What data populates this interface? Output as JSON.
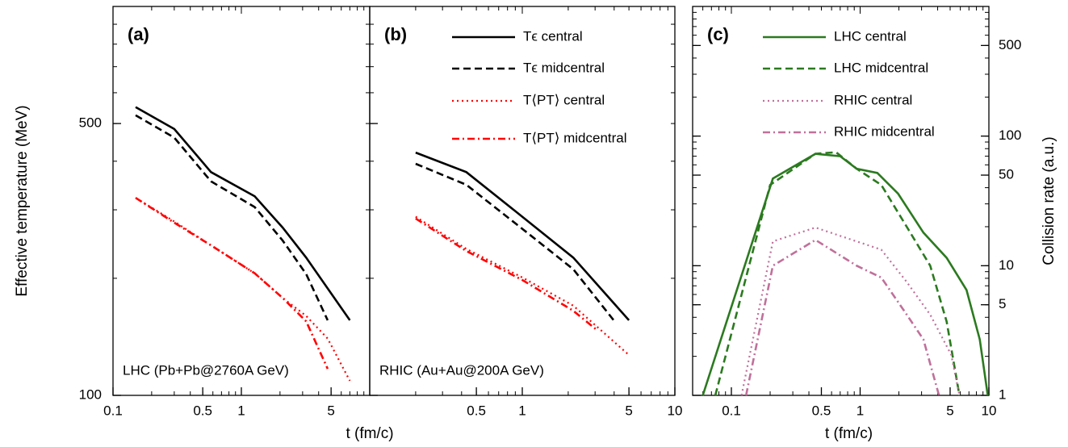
{
  "chart_data": [
    {
      "type": "line",
      "title": "(a)",
      "annotation": "LHC (Pb+Pb@2760A GeV)",
      "x_label": "t (fm/c)",
      "y_label": "Effective temperature (MeV)",
      "log_x": true,
      "log_y": true,
      "xlim": [
        0.1,
        10
      ],
      "xticks": [
        0.1,
        0.5,
        1,
        5
      ],
      "ylim": [
        100,
        1000
      ],
      "yticks": [
        100,
        500
      ],
      "series": [
        {
          "color": "#000000",
          "dash": "solid",
          "x": [
            0.15,
            0.3,
            0.58,
            1.27,
            2.1,
            3.2,
            7
          ],
          "values": [
            551,
            484,
            375,
            325,
            270,
            226,
            156
          ]
        },
        {
          "color": "#000000",
          "dash": "dashed",
          "x": [
            0.15,
            0.3,
            0.58,
            1.27,
            2.1,
            3.2,
            4.7
          ],
          "values": [
            525,
            460,
            355,
            305,
            250,
            205,
            156
          ]
        },
        {
          "color": "#ff0000",
          "dash": "dotted",
          "x": [
            0.15,
            0.3,
            0.58,
            1.27,
            2.1,
            3.2,
            4.7,
            7
          ],
          "values": [
            322,
            280,
            243,
            206,
            178,
            160,
            140,
            109
          ]
        },
        {
          "color": "#ff0000",
          "dash": "dashdot",
          "x": [
            0.15,
            0.3,
            0.58,
            1.27,
            2.1,
            3.2,
            4.7
          ],
          "values": [
            322,
            278,
            243,
            206,
            178,
            155,
            117
          ]
        }
      ]
    },
    {
      "type": "line",
      "title": "(b)",
      "annotation": "RHIC (Au+Au@200A GeV)",
      "legend": "top-right",
      "log_x": true,
      "log_y": true,
      "xlim": [
        0.1,
        10
      ],
      "xticks": [
        0.5,
        1,
        5,
        10
      ],
      "ylim": [
        100,
        1000
      ],
      "yticks": [
        100,
        500
      ],
      "series": [
        {
          "name": "Tϵ central",
          "color": "#000000",
          "dash": "solid",
          "x": [
            0.2,
            0.43,
            1.0,
            2.16,
            5
          ],
          "values": [
            421,
            375,
            288,
            226,
            156
          ]
        },
        {
          "name": "Tϵ midcentral",
          "color": "#000000",
          "dash": "dashed",
          "x": [
            0.2,
            0.43,
            1.0,
            2.16,
            3.97
          ],
          "values": [
            394,
            348,
            268,
            211,
            156
          ]
        },
        {
          "name": "T⟨PT⟩ central",
          "color": "#ff0000",
          "dash": "dotted",
          "x": [
            0.2,
            0.43,
            1.0,
            2.16,
            5
          ],
          "values": [
            288,
            238,
            201,
            170,
            127
          ]
        },
        {
          "name": "T⟨PT⟩ midcentral",
          "color": "#ff0000",
          "dash": "dashdot",
          "x": [
            0.2,
            0.43,
            1.0,
            2.16,
            3.1
          ],
          "values": [
            285,
            235,
            198,
            165,
            147
          ]
        }
      ]
    },
    {
      "type": "line",
      "title": "(c)",
      "legend": "top-left",
      "x_label": "t (fm/c)",
      "y2_label": "Collision rate (a.u.)",
      "log_x": true,
      "log_y": true,
      "xlim": [
        0.05,
        10
      ],
      "xticks": [
        0.1,
        0.5,
        1,
        5,
        10
      ],
      "y2lim": [
        1,
        1000
      ],
      "y2ticks": [
        1,
        5,
        10,
        50,
        100,
        500
      ],
      "series": [
        {
          "name": "LHC central",
          "color": "#2b7a1f",
          "dash": "solid",
          "axis": "y2",
          "x": [
            0.06,
            0.21,
            0.45,
            0.7,
            0.94,
            1.36,
            1.97,
            3.1,
            4.7,
            6.7,
            8.5,
            9.8
          ],
          "values": [
            1,
            47,
            73,
            70,
            56,
            52,
            36,
            18,
            11.5,
            6.5,
            2.7,
            1
          ]
        },
        {
          "name": "LHC midcentral",
          "color": "#2b7a1f",
          "dash": "dashed",
          "axis": "y2",
          "x": [
            0.075,
            0.2,
            0.45,
            0.65,
            0.94,
            1.46,
            2.3,
            3.5,
            4.7,
            5.9
          ],
          "values": [
            1,
            42,
            73,
            75,
            56,
            42,
            20,
            10,
            3.7,
            1
          ]
        },
        {
          "name": "RHIC central",
          "color": "#c0709a",
          "dash": "dotted",
          "axis": "y2",
          "x": [
            0.12,
            0.21,
            0.45,
            0.94,
            1.46,
            2.3,
            3.5,
            5.1,
            5.9
          ],
          "values": [
            1,
            15.4,
            19.7,
            15.4,
            13.3,
            7.5,
            4.2,
            2.05,
            1
          ]
        },
        {
          "name": "RHIC midcentral",
          "color": "#c0709a",
          "dash": "dashdot",
          "axis": "y2",
          "x": [
            0.13,
            0.21,
            0.45,
            0.94,
            1.46,
            2.3,
            3.1,
            4.1
          ],
          "values": [
            1,
            10,
            15.8,
            10,
            8.1,
            4.2,
            2.7,
            1
          ]
        }
      ]
    }
  ]
}
